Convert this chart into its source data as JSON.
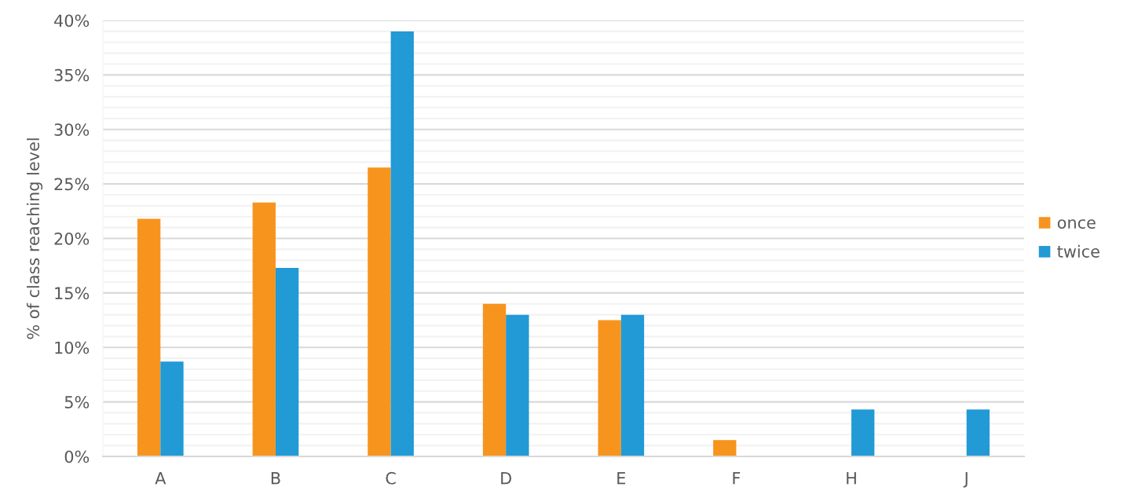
{
  "chart_data": {
    "type": "bar",
    "ylabel": "% of class reaching level",
    "categories": [
      "A",
      "B",
      "C",
      "D",
      "E",
      "F",
      "H",
      "J"
    ],
    "series": [
      {
        "name": "once",
        "color": "#f7941d",
        "values": [
          21.8,
          23.3,
          26.5,
          14.0,
          12.5,
          1.5,
          null,
          null
        ]
      },
      {
        "name": "twice",
        "color": "#219ad6",
        "values": [
          8.7,
          17.3,
          39.0,
          13.0,
          13.0,
          null,
          4.3,
          4.3
        ]
      }
    ],
    "ylim": [
      0,
      40
    ],
    "yticks": [
      {
        "value": 0,
        "label": "0%"
      },
      {
        "value": 1,
        "label": null
      },
      {
        "value": 2,
        "label": null
      },
      {
        "value": 3,
        "label": null
      },
      {
        "value": 4,
        "label": null
      },
      {
        "value": 5,
        "label": "5%"
      },
      {
        "value": 6,
        "label": null
      },
      {
        "value": 7,
        "label": null
      },
      {
        "value": 8,
        "label": null
      },
      {
        "value": 9,
        "label": null
      },
      {
        "value": 10,
        "label": "10%"
      },
      {
        "value": 11,
        "label": null
      },
      {
        "value": 12,
        "label": null
      },
      {
        "value": 13,
        "label": null
      },
      {
        "value": 14,
        "label": null
      },
      {
        "value": 15,
        "label": "15%"
      },
      {
        "value": 16,
        "label": null
      },
      {
        "value": 17,
        "label": null
      },
      {
        "value": 18,
        "label": null
      },
      {
        "value": 19,
        "label": null
      },
      {
        "value": 20,
        "label": "20%"
      },
      {
        "value": 21,
        "label": null
      },
      {
        "value": 22,
        "label": null
      },
      {
        "value": 23,
        "label": null
      },
      {
        "value": 24,
        "label": null
      },
      {
        "value": 25,
        "label": "25%"
      },
      {
        "value": 26,
        "label": null
      },
      {
        "value": 27,
        "label": null
      },
      {
        "value": 28,
        "label": null
      },
      {
        "value": 29,
        "label": null
      },
      {
        "value": 30,
        "label": "30%"
      },
      {
        "value": 31,
        "label": null
      },
      {
        "value": 32,
        "label": null
      },
      {
        "value": 33,
        "label": null
      },
      {
        "value": 34,
        "label": null
      },
      {
        "value": 35,
        "label": "35%"
      },
      {
        "value": 36,
        "label": null
      },
      {
        "value": 37,
        "label": null
      },
      {
        "value": 38,
        "label": null
      },
      {
        "value": 39,
        "label": null
      },
      {
        "value": 40,
        "label": "40%"
      }
    ],
    "grid": "y",
    "legend": "right"
  }
}
